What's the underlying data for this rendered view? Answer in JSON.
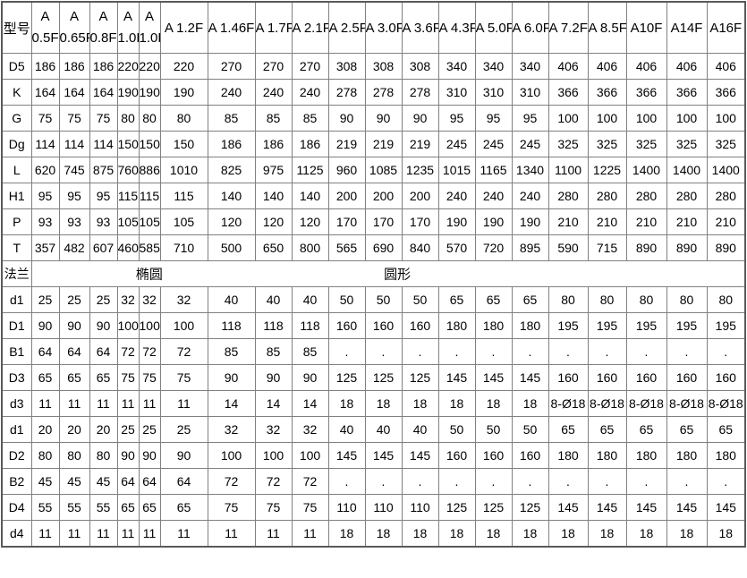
{
  "page": {
    "background_color": "#ffffff",
    "grid_color": "#808080",
    "outer_border_color": "#595959",
    "text_color": "#000000"
  },
  "table": {
    "corner_label": "型号",
    "columns": [
      {
        "top": "A",
        "bottom": "0.5F"
      },
      {
        "top": "A",
        "bottom": "0.65F"
      },
      {
        "top": "A",
        "bottom": "0.8F"
      },
      {
        "top": "A",
        "bottom": "1.0F"
      },
      {
        "top": "A",
        "bottom": "1.0F"
      },
      {
        "label": "A 1.2F"
      },
      {
        "label": "A 1.46F"
      },
      {
        "label": "A 1.7F"
      },
      {
        "label": "A 2.1F"
      },
      {
        "label": "A 2.5F"
      },
      {
        "label": "A 3.0F"
      },
      {
        "label": "A 3.6F"
      },
      {
        "label": "A 4.3F"
      },
      {
        "label": "A 5.0F"
      },
      {
        "label": "A 6.0F"
      },
      {
        "label": "A 7.2F"
      },
      {
        "label": "A 8.5F"
      },
      {
        "label": "A10F"
      },
      {
        "label": "A14F"
      },
      {
        "label": "A16F"
      }
    ],
    "rows_upper": [
      {
        "label": "D5",
        "values": [
          "186",
          "186",
          "186",
          "220",
          "220",
          "220",
          "270",
          "270",
          "270",
          "308",
          "308",
          "308",
          "340",
          "340",
          "340",
          "406",
          "406",
          "406",
          "406",
          "406"
        ]
      },
      {
        "label": "K",
        "values": [
          "164",
          "164",
          "164",
          "190",
          "190",
          "190",
          "240",
          "240",
          "240",
          "278",
          "278",
          "278",
          "310",
          "310",
          "310",
          "366",
          "366",
          "366",
          "366",
          "366"
        ]
      },
      {
        "label": "G",
        "values": [
          "75",
          "75",
          "75",
          "80",
          "80",
          "80",
          "85",
          "85",
          "85",
          "90",
          "90",
          "90",
          "95",
          "95",
          "95",
          "100",
          "100",
          "100",
          "100",
          "100"
        ]
      },
      {
        "label": "Dg",
        "values": [
          "114",
          "114",
          "114",
          "150",
          "150",
          "150",
          "186",
          "186",
          "186",
          "219",
          "219",
          "219",
          "245",
          "245",
          "245",
          "325",
          "325",
          "325",
          "325",
          "325"
        ]
      },
      {
        "label": "L",
        "values": [
          "620",
          "745",
          "875",
          "760",
          "886",
          "1010",
          "825",
          "975",
          "1125",
          "960",
          "1085",
          "1235",
          "1015",
          "1165",
          "1340",
          "1100",
          "1225",
          "1400",
          "1400",
          "1400"
        ]
      },
      {
        "label": "H1",
        "values": [
          "95",
          "95",
          "95",
          "115",
          "115",
          "115",
          "140",
          "140",
          "140",
          "200",
          "200",
          "200",
          "240",
          "240",
          "240",
          "280",
          "280",
          "280",
          "280",
          "280"
        ]
      },
      {
        "label": "P",
        "values": [
          "93",
          "93",
          "93",
          "105",
          "105",
          "105",
          "120",
          "120",
          "120",
          "170",
          "170",
          "170",
          "190",
          "190",
          "190",
          "210",
          "210",
          "210",
          "210",
          "210"
        ]
      },
      {
        "label": "T",
        "values": [
          "357",
          "482",
          "607",
          "460",
          "585",
          "710",
          "500",
          "650",
          "800",
          "565",
          "690",
          "840",
          "570",
          "720",
          "895",
          "590",
          "715",
          "890",
          "890",
          "890"
        ]
      }
    ],
    "flange_row": {
      "label": "法兰",
      "oval_label": "椭圆",
      "round_label": "圆形"
    },
    "rows_lower": [
      {
        "label": "d1",
        "values": [
          "25",
          "25",
          "25",
          "32",
          "32",
          "32",
          "40",
          "40",
          "40",
          "50",
          "50",
          "50",
          "65",
          "65",
          "65",
          "80",
          "80",
          "80",
          "80",
          "80"
        ]
      },
      {
        "label": "D1",
        "values": [
          "90",
          "90",
          "90",
          "100",
          "100",
          "100",
          "118",
          "118",
          "118",
          "160",
          "160",
          "160",
          "180",
          "180",
          "180",
          "195",
          "195",
          "195",
          "195",
          "195"
        ]
      },
      {
        "label": "B1",
        "values": [
          "64",
          "64",
          "64",
          "72",
          "72",
          "72",
          "85",
          "85",
          "85",
          ".",
          ".",
          ".",
          ".",
          ".",
          ".",
          ".",
          ".",
          ".",
          ".",
          "."
        ]
      },
      {
        "label": "D3",
        "values": [
          "65",
          "65",
          "65",
          "75",
          "75",
          "75",
          "90",
          "90",
          "90",
          "125",
          "125",
          "125",
          "145",
          "145",
          "145",
          "160",
          "160",
          "160",
          "160",
          "160"
        ]
      },
      {
        "label": "d3",
        "values": [
          "11",
          "11",
          "11",
          "11",
          "11",
          "11",
          "14",
          "14",
          "14",
          "18",
          "18",
          "18",
          "18",
          "18",
          "18",
          "8-Ø18",
          "8-Ø18",
          "8-Ø18",
          "8-Ø18",
          "8-Ø18"
        ]
      },
      {
        "label": "d1",
        "values": [
          "20",
          "20",
          "20",
          "25",
          "25",
          "25",
          "32",
          "32",
          "32",
          "40",
          "40",
          "40",
          "50",
          "50",
          "50",
          "65",
          "65",
          "65",
          "65",
          "65"
        ]
      },
      {
        "label": "D2",
        "values": [
          "80",
          "80",
          "80",
          "90",
          "90",
          "90",
          "100",
          "100",
          "100",
          "145",
          "145",
          "145",
          "160",
          "160",
          "160",
          "180",
          "180",
          "180",
          "180",
          "180"
        ]
      },
      {
        "label": "B2",
        "values": [
          "45",
          "45",
          "45",
          "64",
          "64",
          "64",
          "72",
          "72",
          "72",
          ".",
          ".",
          ".",
          ".",
          ".",
          ".",
          ".",
          ".",
          ".",
          ".",
          "."
        ]
      },
      {
        "label": "D4",
        "values": [
          "55",
          "55",
          "55",
          "65",
          "65",
          "65",
          "75",
          "75",
          "75",
          "110",
          "110",
          "110",
          "125",
          "125",
          "125",
          "145",
          "145",
          "145",
          "145",
          "145"
        ]
      },
      {
        "label": "d4",
        "values": [
          "11",
          "11",
          "11",
          "11",
          "11",
          "11",
          "11",
          "11",
          "11",
          "18",
          "18",
          "18",
          "18",
          "18",
          "18",
          "18",
          "18",
          "18",
          "18",
          "18"
        ]
      }
    ]
  }
}
